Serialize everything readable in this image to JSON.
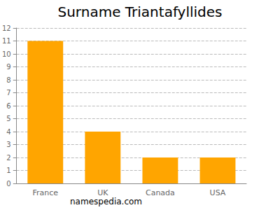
{
  "chart_data": {
    "type": "bar",
    "title": "Surname Triantafyllides",
    "categories": [
      "France",
      "UK",
      "Canada",
      "USA"
    ],
    "values": [
      11,
      4,
      2,
      2
    ],
    "color": "#ffa500",
    "ylim": [
      0,
      12
    ],
    "yticks": [
      0,
      1,
      2,
      3,
      4,
      5,
      6,
      7,
      8,
      9,
      10,
      11,
      12
    ],
    "grid": true,
    "annotation": "namespedia.com"
  }
}
